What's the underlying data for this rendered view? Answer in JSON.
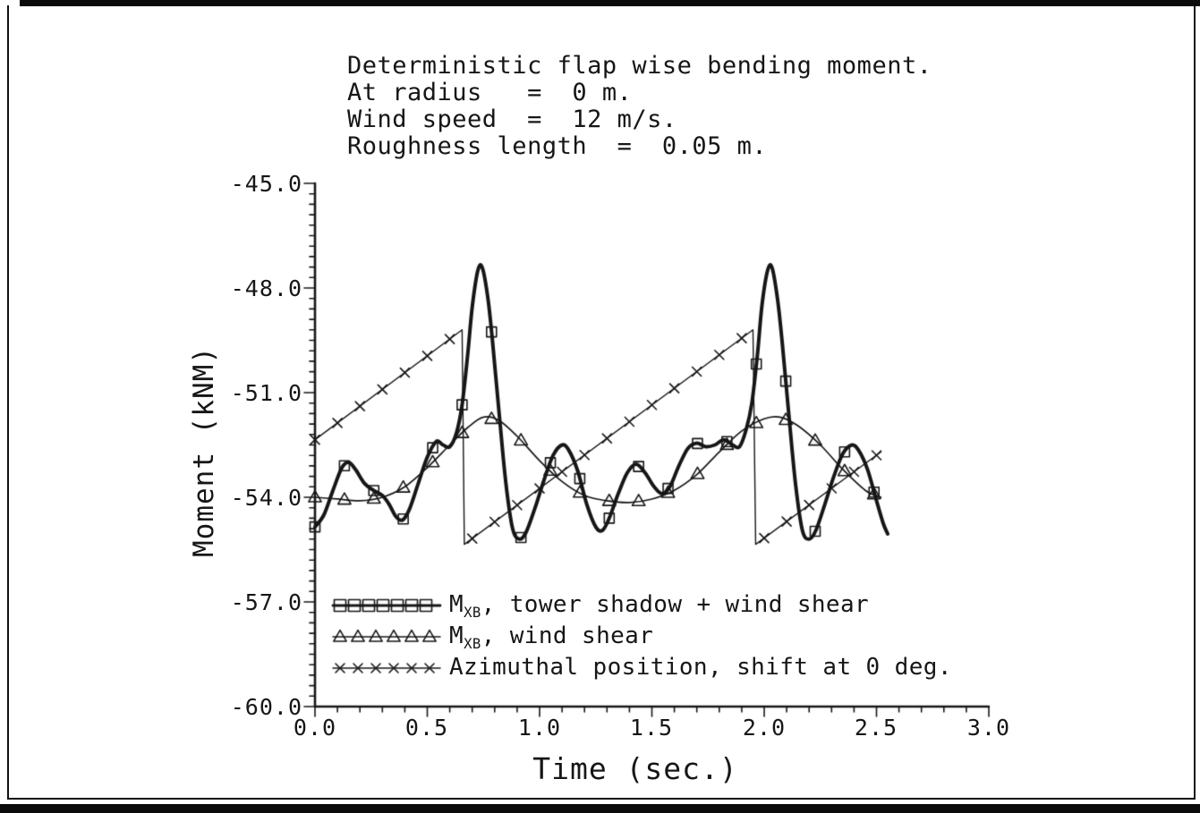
{
  "chart_data": {
    "type": "line",
    "title_lines": [
      "Deterministic flap wise bending moment.",
      "At radius   =  0 m.",
      "Wind speed  =  12 m/s.",
      "Roughness length  =  0.05 m."
    ],
    "xlabel": "Time (sec.)",
    "ylabel": "Moment (kNM)",
    "xlim": [
      0,
      3
    ],
    "ylim": [
      -60,
      -45
    ],
    "xtick_values": [
      0,
      0.5,
      1.0,
      1.5,
      2.0,
      2.5,
      3.0
    ],
    "xtick_labels": [
      "0.0",
      "0.5",
      "1.0",
      "1.5",
      "2.0",
      "2.5",
      "3.0"
    ],
    "ytick_values": [
      -45,
      -48,
      -51,
      -54,
      -57,
      -60
    ],
    "ytick_labels": [
      "-45.0",
      "-48.0",
      "-51.0",
      "-54.0",
      "-57.0",
      "-60.0"
    ],
    "grid": false,
    "legend_position": "lower-left-inside",
    "axis_color": "#161616",
    "background": "#ffffff",
    "series": [
      {
        "name": "MXB, tower shadow + wind shear",
        "marker": "square",
        "line_width": 4,
        "smooth": true,
        "marker_dt": 0.131,
        "marker_tmax": 2.49,
        "color": "#161616",
        "points": [
          [
            0.0,
            -54.85
          ],
          [
            0.04,
            -54.5
          ],
          [
            0.08,
            -53.8
          ],
          [
            0.12,
            -53.15
          ],
          [
            0.15,
            -53.0
          ],
          [
            0.18,
            -53.2
          ],
          [
            0.22,
            -53.6
          ],
          [
            0.26,
            -53.8
          ],
          [
            0.3,
            -53.95
          ],
          [
            0.33,
            -54.2
          ],
          [
            0.36,
            -54.55
          ],
          [
            0.39,
            -54.65
          ],
          [
            0.42,
            -54.35
          ],
          [
            0.46,
            -53.6
          ],
          [
            0.5,
            -52.85
          ],
          [
            0.54,
            -52.4
          ],
          [
            0.57,
            -52.5
          ],
          [
            0.6,
            -52.55
          ],
          [
            0.63,
            -52.15
          ],
          [
            0.655,
            -51.35
          ],
          [
            0.68,
            -49.9
          ],
          [
            0.7,
            -48.55
          ],
          [
            0.725,
            -47.5
          ],
          [
            0.745,
            -47.42
          ],
          [
            0.77,
            -48.3
          ],
          [
            0.79,
            -49.5
          ],
          [
            0.82,
            -51.6
          ],
          [
            0.85,
            -53.6
          ],
          [
            0.88,
            -54.9
          ],
          [
            0.91,
            -55.2
          ],
          [
            0.94,
            -55.0
          ],
          [
            0.98,
            -54.3
          ],
          [
            1.02,
            -53.5
          ],
          [
            1.06,
            -52.8
          ],
          [
            1.1,
            -52.5
          ],
          [
            1.13,
            -52.65
          ],
          [
            1.17,
            -53.25
          ],
          [
            1.21,
            -54.2
          ],
          [
            1.25,
            -54.85
          ],
          [
            1.28,
            -54.95
          ],
          [
            1.31,
            -54.6
          ],
          [
            1.35,
            -53.9
          ],
          [
            1.39,
            -53.3
          ],
          [
            1.43,
            -53.05
          ],
          [
            1.47,
            -53.3
          ],
          [
            1.51,
            -53.7
          ],
          [
            1.545,
            -53.9
          ],
          [
            1.58,
            -53.7
          ],
          [
            1.62,
            -53.1
          ],
          [
            1.66,
            -52.6
          ],
          [
            1.7,
            -52.45
          ],
          [
            1.74,
            -52.55
          ],
          [
            1.78,
            -52.5
          ],
          [
            1.82,
            -52.35
          ],
          [
            1.86,
            -52.5
          ],
          [
            1.89,
            -52.55
          ],
          [
            1.92,
            -52.05
          ],
          [
            1.945,
            -51.3
          ],
          [
            1.97,
            -49.9
          ],
          [
            1.99,
            -48.5
          ],
          [
            2.015,
            -47.5
          ],
          [
            2.035,
            -47.42
          ],
          [
            2.06,
            -48.35
          ],
          [
            2.08,
            -49.55
          ],
          [
            2.11,
            -51.65
          ],
          [
            2.14,
            -53.65
          ],
          [
            2.17,
            -54.95
          ],
          [
            2.2,
            -55.2
          ],
          [
            2.23,
            -54.95
          ],
          [
            2.27,
            -54.2
          ],
          [
            2.31,
            -53.4
          ],
          [
            2.35,
            -52.75
          ],
          [
            2.39,
            -52.5
          ],
          [
            2.42,
            -52.65
          ],
          [
            2.46,
            -53.2
          ],
          [
            2.5,
            -54.1
          ],
          [
            2.53,
            -54.75
          ],
          [
            2.55,
            -55.05
          ]
        ]
      },
      {
        "name": "MXB, wind shear",
        "marker": "triangle",
        "line_width": 1.7,
        "smooth": true,
        "marker_dt": 0.131,
        "marker_tmax": 2.49,
        "color": "#161616",
        "points": [
          [
            0.0,
            -54.0
          ],
          [
            0.1,
            -54.05
          ],
          [
            0.2,
            -54.1
          ],
          [
            0.3,
            -54.0
          ],
          [
            0.4,
            -53.7
          ],
          [
            0.5,
            -53.15
          ],
          [
            0.6,
            -52.5
          ],
          [
            0.68,
            -52.0
          ],
          [
            0.75,
            -51.7
          ],
          [
            0.82,
            -51.8
          ],
          [
            0.9,
            -52.25
          ],
          [
            1.0,
            -52.95
          ],
          [
            1.1,
            -53.55
          ],
          [
            1.2,
            -53.95
          ],
          [
            1.3,
            -54.1
          ],
          [
            1.4,
            -54.15
          ],
          [
            1.5,
            -54.05
          ],
          [
            1.6,
            -53.8
          ],
          [
            1.7,
            -53.35
          ],
          [
            1.8,
            -52.7
          ],
          [
            1.9,
            -52.1
          ],
          [
            2.0,
            -51.75
          ],
          [
            2.07,
            -51.7
          ],
          [
            2.15,
            -51.95
          ],
          [
            2.25,
            -52.5
          ],
          [
            2.35,
            -53.2
          ],
          [
            2.45,
            -53.8
          ],
          [
            2.52,
            -54.0
          ]
        ]
      },
      {
        "name": "Azimuthal position, shift at 0 deg.",
        "marker": "x",
        "line_width": 1.4,
        "smooth": false,
        "marker_dt": 0.1,
        "marker_tmax": 2.5,
        "color": "#161616",
        "points": [
          [
            0.0,
            -52.35
          ],
          [
            0.655,
            -49.2
          ],
          [
            0.665,
            -55.35
          ],
          [
            1.95,
            -49.2
          ],
          [
            1.962,
            -55.35
          ],
          [
            2.52,
            -52.7
          ]
        ]
      }
    ],
    "legend_items": [
      {
        "prefix": "M",
        "sub": "XB",
        "rest": ", tower shadow + wind shear",
        "marker": "square"
      },
      {
        "prefix": "M",
        "sub": "XB",
        "rest": ", wind shear",
        "marker": "triangle"
      },
      {
        "prefix": "",
        "sub": "",
        "rest": "Azimuthal position, shift at 0 deg.",
        "marker": "x"
      }
    ]
  }
}
